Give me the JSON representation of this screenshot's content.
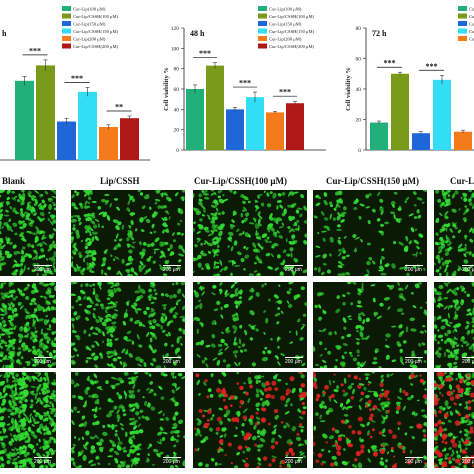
{
  "chart_data": [
    {
      "type": "bar",
      "title": "h",
      "ylabel": "",
      "categories": [
        "Blank",
        "Cur-Lip(100 μM)",
        "Cur-Lip/CSSH(100 μM)",
        "Cur-Lip(150 μM)",
        "Cur-Lip/CSSH(150 μM)",
        "Cur-Lip(200 μM)",
        "Cur-Lip/CSSH(200 μM)"
      ],
      "values": [
        null,
        72,
        86,
        35,
        62,
        30,
        38
      ],
      "errors": [
        null,
        4,
        5,
        3,
        4,
        2,
        2
      ],
      "colors": [
        "#ffffff",
        "#22b07a",
        "#7a9a1a",
        "#1f66d8",
        "#33ddf5",
        "#f57a1a",
        "#b01818"
      ],
      "ylim": [
        0,
        120
      ],
      "legend": [
        "Cur-Lip(100 μM)",
        "Cur-Lip/CSSH(100 μM)",
        "Cur-Lip(150 μM)",
        "Cur-Lip/CSSH(150 μM)",
        "Cur-Lip(200 μM)",
        "Cur-Lip/CSSH(200 μM)"
      ],
      "legend_placement": "top-right",
      "annotations": [
        {
          "text": "***",
          "pair": [
            1,
            2
          ]
        },
        {
          "text": "***",
          "pair": [
            3,
            4
          ]
        },
        {
          "text": "**",
          "pair": [
            5,
            6
          ]
        }
      ]
    },
    {
      "type": "bar",
      "title": "48 h",
      "ylabel": "Cell viability %",
      "categories": [
        "Cur-Lip(100 μM)",
        "Cur-Lip/CSSH(100 μM)",
        "Cur-Lip(150 μM)",
        "Cur-Lip/CSSH(150 μM)",
        "Cur-Lip(200 μM)",
        "Cur-Lip/CSSH(200 μM)"
      ],
      "values": [
        60,
        83,
        40,
        52,
        37,
        46
      ],
      "errors": [
        4,
        3,
        2,
        5,
        1,
        2
      ],
      "colors": [
        "#22b07a",
        "#7a9a1a",
        "#1f66d8",
        "#33ddf5",
        "#f57a1a",
        "#b01818"
      ],
      "ylim": [
        0,
        120
      ],
      "yticks": [
        0,
        20,
        40,
        60,
        80,
        100,
        120
      ],
      "legend": [
        "Cur-Lip(100 μM)",
        "Cur-Lip/CSSH(100 μM)",
        "Cur-Lip(150 μM)",
        "Cur-Lip/CSSH(150 μM)",
        "Cur-Lip(200 μM)",
        "Cur-Lip/CSSH(200 μM)"
      ],
      "legend_placement": "top-right",
      "annotations": [
        {
          "text": "***",
          "pair": [
            0,
            1
          ]
        },
        {
          "text": "***",
          "pair": [
            2,
            3
          ]
        },
        {
          "text": "***",
          "pair": [
            4,
            5
          ]
        }
      ]
    },
    {
      "type": "bar",
      "title": "72 h",
      "ylabel": "Cell viability %",
      "categories": [
        "Cur-Lip(100 μM)",
        "Cur-Lip/CSSH(100 μM)",
        "Cur-Lip(150 μM)",
        "Cur-Lip/CSSH(150 μM)",
        "Cur-Lip(200 μM)"
      ],
      "values": [
        18,
        50,
        11,
        46,
        12
      ],
      "errors": [
        1,
        1,
        1,
        3,
        1
      ],
      "colors": [
        "#22b07a",
        "#7a9a1a",
        "#1f66d8",
        "#33ddf5",
        "#f57a1a"
      ],
      "ylim": [
        0,
        80
      ],
      "yticks": [
        0,
        20,
        40,
        60,
        80
      ],
      "legend": [
        "Cur",
        "Cur",
        "Cur",
        "Cur",
        "Cur"
      ],
      "legend_placement": "top-right",
      "annotations": [
        {
          "text": "***",
          "pair": [
            0,
            1
          ]
        },
        {
          "text": "***",
          "pair": [
            2,
            3
          ]
        }
      ]
    }
  ],
  "image_grid": {
    "columns": [
      "Blank",
      "Lip/CSSH",
      "Cur-Lip/CSSH(100 μM)",
      "Cur-Lip/CSSH(150 μM)",
      "Cur-L"
    ],
    "scalebar": "200 μm",
    "rows": [
      [
        "green",
        "green",
        "green",
        "green-sparse",
        "green-sparse"
      ],
      [
        "green",
        "green",
        "green-sparse",
        "green-sparse",
        "green-sparse"
      ],
      [
        "green-dense",
        "green",
        "mixed",
        "mixed",
        "mixed"
      ]
    ],
    "colors": {
      "live": "#33dd33",
      "dead": "#dd2222",
      "background": "#0a1a05"
    }
  }
}
